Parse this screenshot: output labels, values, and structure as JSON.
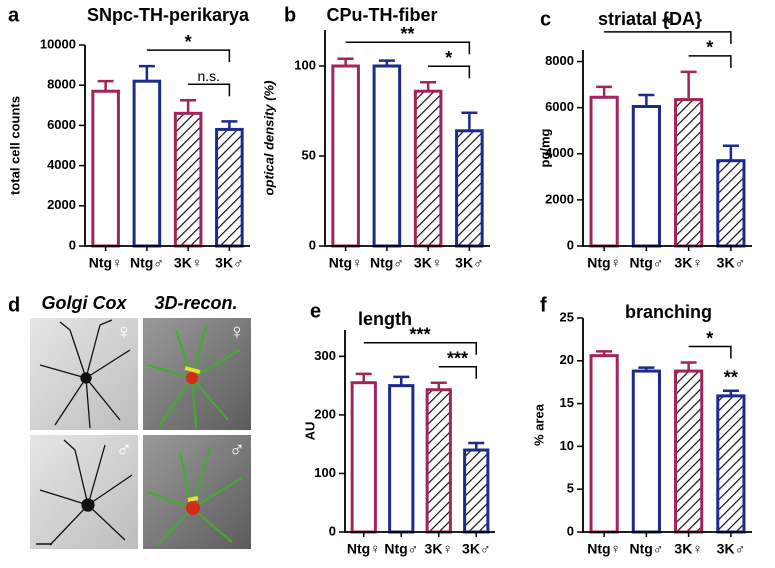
{
  "chart_data": [
    {
      "type": "bar",
      "panel": "a",
      "title": "SNpc-TH-perikarya",
      "ylabel": "total cell counts",
      "categories": [
        "Ntg♀",
        "Ntg♂",
        "3K♀",
        "3K♂"
      ],
      "values": [
        7700,
        8200,
        6600,
        5800
      ],
      "errors": [
        500,
        750,
        650,
        400
      ],
      "colors": [
        "#a3245a",
        "#1c2a8c",
        "#a3245a",
        "#1c2a8c"
      ],
      "hatched": [
        false,
        false,
        true,
        true
      ],
      "ylim": [
        0,
        10000
      ],
      "yticks": [
        0,
        2000,
        4000,
        6000,
        8000,
        10000
      ],
      "brackets": [
        {
          "label": "*",
          "between": [
            "Ntg♂",
            "3K♂"
          ]
        },
        {
          "label": "n.s.",
          "between": [
            "3K♀",
            "3K♂"
          ]
        }
      ]
    },
    {
      "type": "bar",
      "panel": "b",
      "title": "CPu-TH-fiber",
      "ylabel": "optical density (%)",
      "categories": [
        "Ntg♀",
        "Ntg♂",
        "3K♀",
        "3K♂"
      ],
      "values": [
        100,
        100,
        86,
        64
      ],
      "errors": [
        4,
        3,
        5,
        10
      ],
      "colors": [
        "#a3245a",
        "#1c2a8c",
        "#a3245a",
        "#1c2a8c"
      ],
      "hatched": [
        false,
        false,
        true,
        true
      ],
      "ylim": [
        0,
        120
      ],
      "yticks": [
        0,
        50,
        100
      ],
      "brackets": [
        {
          "label": "**",
          "between": [
            "Ntg♀",
            "3K♂"
          ]
        },
        {
          "label": "*",
          "between": [
            "3K♀",
            "3K♂"
          ]
        }
      ]
    },
    {
      "type": "bar",
      "panel": "c",
      "title": "striatal {DA}",
      "ylabel": "pg/mg",
      "categories": [
        "Ntg♀",
        "Ntg♂",
        "3K♀",
        "3K♂"
      ],
      "values": [
        6450,
        6050,
        6350,
        3700
      ],
      "errors": [
        450,
        500,
        1200,
        650
      ],
      "colors": [
        "#a3245a",
        "#1c2a8c",
        "#a3245a",
        "#1c2a8c"
      ],
      "hatched": [
        false,
        false,
        true,
        true
      ],
      "ylim": [
        0,
        8500
      ],
      "yticks": [
        0,
        2000,
        4000,
        6000,
        8000
      ],
      "brackets": [
        {
          "label": "*",
          "between": [
            "Ntg♀",
            "3K♂"
          ]
        },
        {
          "label": "*",
          "between": [
            "3K♀",
            "3K♂"
          ]
        }
      ]
    },
    {
      "type": "bar",
      "panel": "e",
      "title": "length",
      "ylabel": "AU",
      "categories": [
        "Ntg♀",
        "Ntg♂",
        "3K♀",
        "3K♂"
      ],
      "values": [
        255,
        250,
        243,
        140
      ],
      "errors": [
        15,
        15,
        12,
        12
      ],
      "colors": [
        "#a3245a",
        "#1c2a8c",
        "#a3245a",
        "#1c2a8c"
      ],
      "hatched": [
        false,
        false,
        true,
        true
      ],
      "ylim": [
        0,
        345
      ],
      "yticks": [
        0,
        100,
        200,
        300
      ],
      "brackets": [
        {
          "label": "***",
          "between": [
            "Ntg♀",
            "3K♂"
          ]
        },
        {
          "label": "***",
          "between": [
            "3K♀",
            "3K♂"
          ]
        }
      ]
    },
    {
      "type": "bar",
      "panel": "f",
      "title": "branching",
      "ylabel": "% area",
      "categories": [
        "Ntg♀",
        "Ntg♂",
        "3K♀",
        "3K♂"
      ],
      "values": [
        20.6,
        18.8,
        18.8,
        15.9
      ],
      "errors": [
        0.5,
        0.4,
        1.0,
        0.6
      ],
      "colors": [
        "#a3245a",
        "#1c2a8c",
        "#a3245a",
        "#1c2a8c"
      ],
      "hatched": [
        false,
        false,
        true,
        true
      ],
      "ylim": [
        0,
        25
      ],
      "yticks": [
        0,
        5,
        10,
        15,
        20,
        25
      ],
      "brackets": [
        {
          "label": "*",
          "between": [
            "3K♀",
            "3K♂"
          ]
        }
      ],
      "annotations": [
        {
          "label": "**",
          "at": "3K♂"
        }
      ]
    }
  ],
  "panel_d": {
    "letter": "d",
    "columns": [
      "Golgi Cox",
      "3D-recon."
    ],
    "rows": [
      "♀",
      "♂"
    ]
  }
}
